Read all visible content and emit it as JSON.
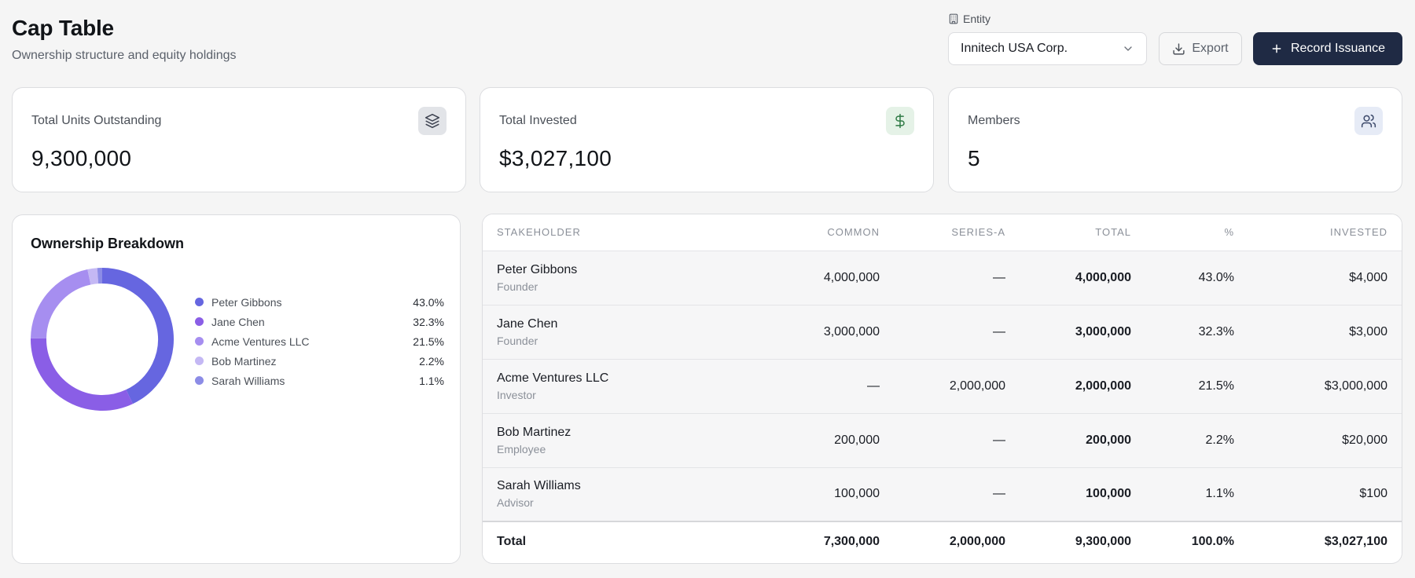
{
  "header": {
    "title": "Cap Table",
    "subtitle": "Ownership structure and equity holdings"
  },
  "entity": {
    "label": "Entity",
    "selected": "Innitech USA Corp."
  },
  "actions": {
    "export_label": "Export",
    "record_label": "Record Issuance"
  },
  "stats": [
    {
      "label": "Total Units Outstanding",
      "value": "9,300,000",
      "icon": "layers-icon",
      "icon_bg": "#e2e4e8",
      "icon_color": "#3d4250"
    },
    {
      "label": "Total Invested",
      "value": "$3,027,100",
      "icon": "dollar-icon",
      "icon_bg": "#e5f2e7",
      "icon_color": "#2f7a45"
    },
    {
      "label": "Members",
      "value": "5",
      "icon": "users-icon",
      "icon_bg": "#e6ebf6",
      "icon_color": "#3d4a6b"
    }
  ],
  "breakdown": {
    "title": "Ownership Breakdown",
    "items": [
      {
        "name": "Peter Gibbons",
        "pct": "43.0%",
        "value": 43.0,
        "color": "#6666e0"
      },
      {
        "name": "Jane Chen",
        "pct": "32.3%",
        "value": 32.3,
        "color": "#8a5ee6"
      },
      {
        "name": "Acme Ventures LLC",
        "pct": "21.5%",
        "value": 21.5,
        "color": "#a68ef0"
      },
      {
        "name": "Bob Martinez",
        "pct": "2.2%",
        "value": 2.2,
        "color": "#c4b8f4"
      },
      {
        "name": "Sarah Williams",
        "pct": "1.1%",
        "value": 1.1,
        "color": "#8c8ce6"
      }
    ]
  },
  "table": {
    "headers": [
      "STAKEHOLDER",
      "COMMON",
      "SERIES-A",
      "TOTAL",
      "%",
      "INVESTED"
    ],
    "rows": [
      {
        "name": "Peter Gibbons",
        "role": "Founder",
        "common": "4,000,000",
        "series_a": "—",
        "total": "4,000,000",
        "pct": "43.0%",
        "invested": "$4,000"
      },
      {
        "name": "Jane Chen",
        "role": "Founder",
        "common": "3,000,000",
        "series_a": "—",
        "total": "3,000,000",
        "pct": "32.3%",
        "invested": "$3,000"
      },
      {
        "name": "Acme Ventures LLC",
        "role": "Investor",
        "common": "—",
        "series_a": "2,000,000",
        "total": "2,000,000",
        "pct": "21.5%",
        "invested": "$3,000,000"
      },
      {
        "name": "Bob Martinez",
        "role": "Employee",
        "common": "200,000",
        "series_a": "—",
        "total": "200,000",
        "pct": "2.2%",
        "invested": "$20,000"
      },
      {
        "name": "Sarah Williams",
        "role": "Advisor",
        "common": "100,000",
        "series_a": "—",
        "total": "100,000",
        "pct": "1.1%",
        "invested": "$100"
      }
    ],
    "total": {
      "label": "Total",
      "common": "7,300,000",
      "series_a": "2,000,000",
      "total": "9,300,000",
      "pct": "100.0%",
      "invested": "$3,027,100"
    }
  }
}
